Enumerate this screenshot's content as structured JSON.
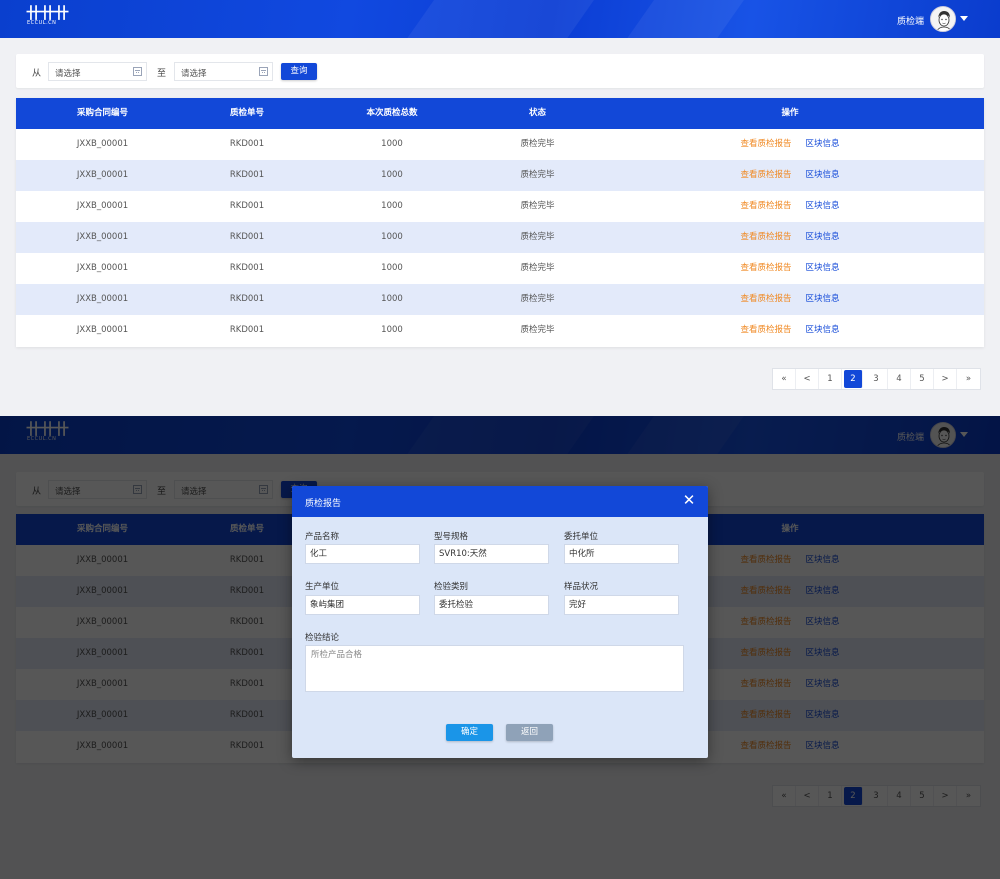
{
  "header": {
    "logo_text": "ECCUL.CN",
    "user_name": "质检端"
  },
  "filter": {
    "from_label": "从",
    "to_label": "至",
    "start_placeholder": "请选择",
    "end_placeholder": "请选择",
    "query_label": "查询"
  },
  "table": {
    "columns": [
      "采购合同编号",
      "质检单号",
      "本次质检总数",
      "状态",
      "操作"
    ],
    "rows": [
      [
        "JXXB_00001",
        "RKD001",
        "1000",
        "质检完毕"
      ],
      [
        "JXXB_00001",
        "RKD001",
        "1000",
        "质检完毕"
      ],
      [
        "JXXB_00001",
        "RKD001",
        "1000",
        "质检完毕"
      ],
      [
        "JXXB_00001",
        "RKD001",
        "1000",
        "质检完毕"
      ],
      [
        "JXXB_00001",
        "RKD001",
        "1000",
        "质检完毕"
      ],
      [
        "JXXB_00001",
        "RKD001",
        "1000",
        "质检完毕"
      ],
      [
        "JXXB_00001",
        "RKD001",
        "1000",
        "质检完毕"
      ]
    ],
    "action_report": "查看质检报告",
    "action_chain": "区块信息"
  },
  "pagination": {
    "items": [
      "«",
      "<",
      "1",
      "2",
      "3",
      "4",
      "5",
      ">",
      "»"
    ],
    "active_page": "2"
  },
  "modal": {
    "title": "质检报告",
    "close_glyph": "✕",
    "fields": [
      {
        "label": "产品名称",
        "value": "化工"
      },
      {
        "label": "型号规格",
        "value": "SVR10:天然"
      },
      {
        "label": "委托单位",
        "value": "中化所"
      },
      {
        "label": "生产单位",
        "value": "象屿集团"
      },
      {
        "label": "检验类别",
        "value": "委托检验"
      },
      {
        "label": "样品状况",
        "value": "完好"
      }
    ],
    "conclusion_label": "检验结论",
    "conclusion_value": "所检产品合格",
    "confirm_label": "确定",
    "back_label": "返回"
  },
  "colors": {
    "primary": "#1248d8",
    "row_alt": "#e3eafa",
    "link_orange": "#f08a24",
    "modal_bg": "#dbe6f8",
    "confirm": "#1a95e8",
    "back": "#8fa2b8"
  }
}
